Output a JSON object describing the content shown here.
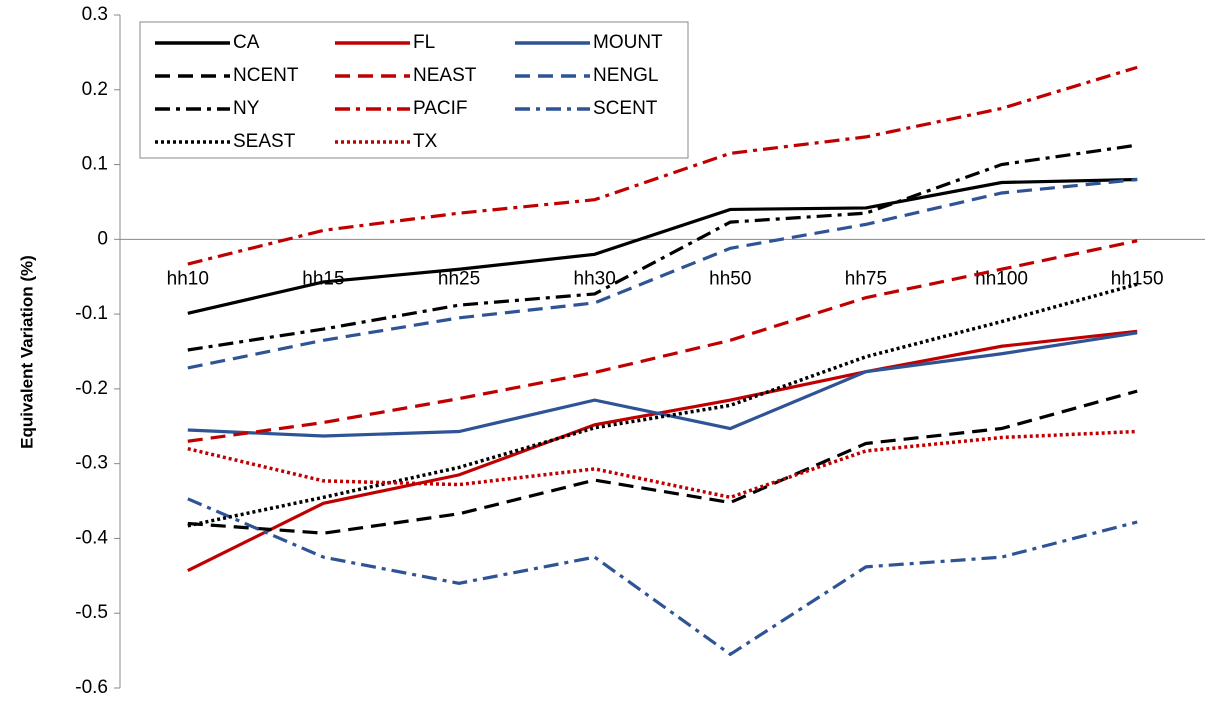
{
  "chart_data": {
    "type": "line",
    "y_label": "Equivalent Variation (%)",
    "categories": [
      "hh10",
      "hh15",
      "hh25",
      "hh30",
      "hh50",
      "hh75",
      "hh100",
      "hh150"
    ],
    "ylim": [
      -0.6,
      0.3
    ],
    "yticks": [
      -0.6,
      -0.5,
      -0.4,
      -0.3,
      -0.2,
      -0.1,
      0,
      0.1,
      0.2,
      0.3
    ],
    "grid": false,
    "legend": "top-left",
    "series": [
      {
        "name": "CA",
        "color": "#000000",
        "dash": "solid",
        "values": [
          -0.099,
          -0.057,
          -0.04,
          -0.02,
          0.04,
          0.042,
          0.076,
          0.08
        ]
      },
      {
        "name": "FL",
        "color": "#c00000",
        "dash": "solid",
        "values": [
          -0.443,
          -0.353,
          -0.315,
          -0.248,
          -0.215,
          -0.177,
          -0.143,
          -0.123
        ]
      },
      {
        "name": "MOUNT",
        "color": "#2f5496",
        "dash": "solid",
        "values": [
          -0.255,
          -0.263,
          -0.257,
          -0.215,
          -0.253,
          -0.177,
          -0.153,
          -0.125
        ]
      },
      {
        "name": "NCENT",
        "color": "#000000",
        "dash": "dash",
        "values": [
          -0.38,
          -0.393,
          -0.367,
          -0.322,
          -0.352,
          -0.273,
          -0.253,
          -0.203
        ]
      },
      {
        "name": "NEAST",
        "color": "#c00000",
        "dash": "dash",
        "values": [
          -0.27,
          -0.245,
          -0.213,
          -0.178,
          -0.135,
          -0.078,
          -0.04,
          -0.002
        ]
      },
      {
        "name": "NENGL",
        "color": "#2f5496",
        "dash": "dash",
        "values": [
          -0.172,
          -0.135,
          -0.105,
          -0.085,
          -0.012,
          0.02,
          0.062,
          0.08
        ]
      },
      {
        "name": "NY",
        "color": "#000000",
        "dash": "dashdot",
        "values": [
          -0.148,
          -0.12,
          -0.088,
          -0.073,
          0.023,
          0.035,
          0.1,
          0.126
        ]
      },
      {
        "name": "PACIF",
        "color": "#c00000",
        "dash": "dashdot",
        "values": [
          -0.033,
          0.012,
          0.035,
          0.053,
          0.115,
          0.137,
          0.175,
          0.23
        ]
      },
      {
        "name": "SCENT",
        "color": "#2f5496",
        "dash": "dashdot",
        "values": [
          -0.347,
          -0.425,
          -0.46,
          -0.425,
          -0.555,
          -0.438,
          -0.425,
          -0.378
        ]
      },
      {
        "name": "SEAST",
        "color": "#000000",
        "dash": "dot",
        "values": [
          -0.383,
          -0.345,
          -0.305,
          -0.252,
          -0.222,
          -0.157,
          -0.11,
          -0.06
        ]
      },
      {
        "name": "TX",
        "color": "#c00000",
        "dash": "dot",
        "values": [
          -0.28,
          -0.323,
          -0.328,
          -0.307,
          -0.345,
          -0.283,
          -0.265,
          -0.257
        ]
      }
    ]
  }
}
